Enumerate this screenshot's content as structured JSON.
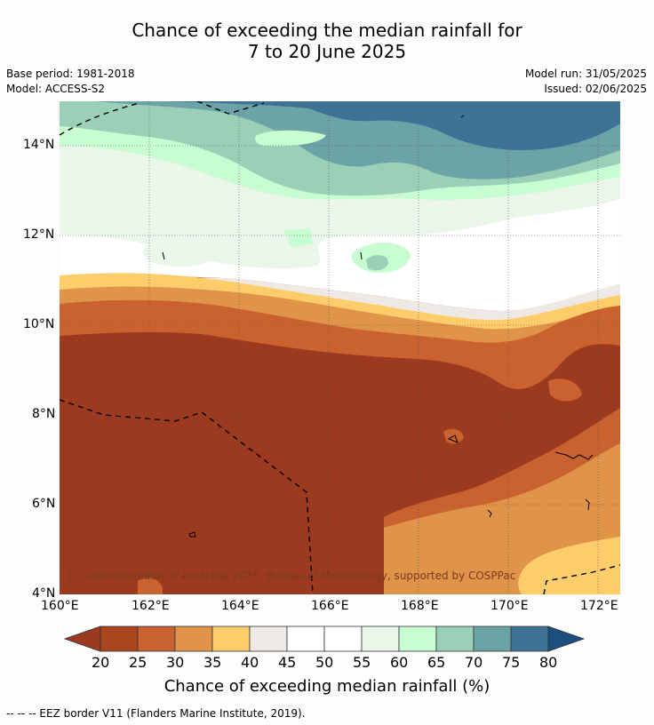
{
  "header": {
    "title_line1": "Chance of exceeding the median rainfall for",
    "title_line2": "7 to 20 June 2025",
    "base_period": "Base period: 1981-2018",
    "model": "Model: ACCESS-S2",
    "model_run": "Model run: 31/05/2025",
    "issued": "Issued: 02/06/2025"
  },
  "map": {
    "x_ticks": [
      "160°E",
      "162°E",
      "164°E",
      "166°E",
      "168°E",
      "170°E",
      "172°E"
    ],
    "y_ticks": [
      "14°N",
      "12°N",
      "10°N",
      "8°N",
      "6°N",
      "4°N"
    ],
    "copyright": "© Commonwealth of Australia 2025, Bureau of Meteorology, supported by COSPPac"
  },
  "colorbar": {
    "labels": [
      "20",
      "25",
      "30",
      "35",
      "40",
      "45",
      "50",
      "55",
      "60",
      "65",
      "70",
      "75",
      "80"
    ],
    "colors": [
      "#9b3a1f",
      "#a9451f",
      "#c9622f",
      "#e0944a",
      "#fdcd6b",
      "#efe9e6",
      "#ffffff",
      "#ffffff",
      "#eaf6ea",
      "#c8fcd1",
      "#9bcfb8",
      "#6ca3a6",
      "#3f7396",
      "#1d4f7e"
    ],
    "title": "Chance of exceeding median rainfall (%)"
  },
  "footnote": "--  --  -- EEZ border V11 (Flanders Marine Institute, 2019)."
}
